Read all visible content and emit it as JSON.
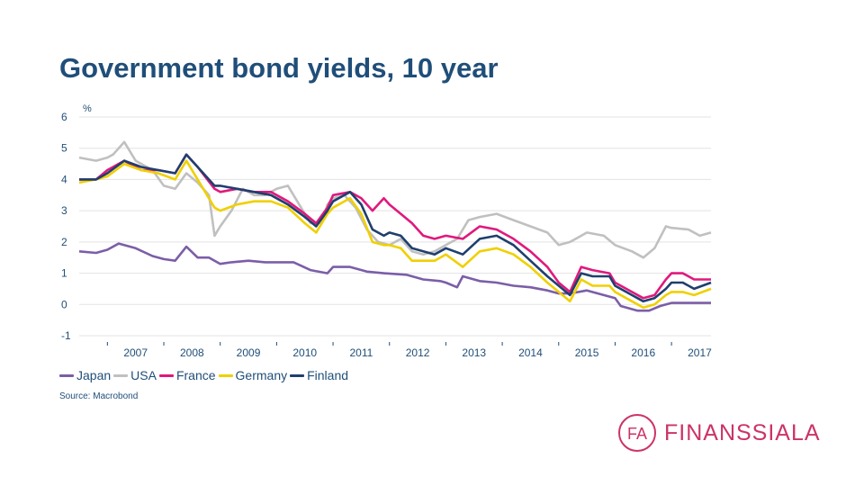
{
  "slide": {
    "title": "Government bond yields, 10 year",
    "source": "Source: Macrobond",
    "logo_text": "FINANSSIALA",
    "logo_mark": "FA"
  },
  "chart_data": {
    "type": "line",
    "title": "Government bond yields, 10 year",
    "unit_label": "%",
    "xlabel": "",
    "ylabel": "%",
    "ylim": [
      -1,
      6
    ],
    "xlim": [
      2006.5,
      2017.7
    ],
    "yticks": [
      6,
      5,
      4,
      3,
      2,
      1,
      0,
      -1
    ],
    "xticks": [
      "2007",
      "2008",
      "2009",
      "2010",
      "2011",
      "2012",
      "2013",
      "2014",
      "2015",
      "2016",
      "2017"
    ],
    "grid": "horizontal",
    "legend_position": "bottom",
    "series": [
      {
        "name": "Japan",
        "color": "#7b5ea7",
        "points": [
          [
            2006.5,
            1.7
          ],
          [
            2006.8,
            1.65
          ],
          [
            2007.0,
            1.75
          ],
          [
            2007.2,
            1.95
          ],
          [
            2007.5,
            1.8
          ],
          [
            2007.8,
            1.55
          ],
          [
            2008.0,
            1.45
          ],
          [
            2008.2,
            1.4
          ],
          [
            2008.4,
            1.85
          ],
          [
            2008.6,
            1.5
          ],
          [
            2008.8,
            1.5
          ],
          [
            2009.0,
            1.3
          ],
          [
            2009.2,
            1.35
          ],
          [
            2009.5,
            1.4
          ],
          [
            2009.8,
            1.35
          ],
          [
            2010.0,
            1.35
          ],
          [
            2010.3,
            1.35
          ],
          [
            2010.6,
            1.1
          ],
          [
            2010.9,
            1.0
          ],
          [
            2011.0,
            1.2
          ],
          [
            2011.3,
            1.2
          ],
          [
            2011.6,
            1.05
          ],
          [
            2011.9,
            1.0
          ],
          [
            2012.3,
            0.95
          ],
          [
            2012.6,
            0.8
          ],
          [
            2012.9,
            0.75
          ],
          [
            2013.0,
            0.7
          ],
          [
            2013.2,
            0.55
          ],
          [
            2013.3,
            0.9
          ],
          [
            2013.6,
            0.75
          ],
          [
            2013.9,
            0.7
          ],
          [
            2014.2,
            0.6
          ],
          [
            2014.5,
            0.55
          ],
          [
            2014.8,
            0.45
          ],
          [
            2015.0,
            0.35
          ],
          [
            2015.2,
            0.35
          ],
          [
            2015.5,
            0.45
          ],
          [
            2015.8,
            0.3
          ],
          [
            2016.0,
            0.2
          ],
          [
            2016.1,
            -0.05
          ],
          [
            2016.4,
            -0.2
          ],
          [
            2016.6,
            -0.2
          ],
          [
            2016.8,
            -0.05
          ],
          [
            2017.0,
            0.05
          ],
          [
            2017.2,
            0.05
          ],
          [
            2017.5,
            0.05
          ],
          [
            2017.7,
            0.05
          ]
        ]
      },
      {
        "name": "USA",
        "color": "#c0c0c0",
        "points": [
          [
            2006.5,
            4.7
          ],
          [
            2006.8,
            4.6
          ],
          [
            2007.0,
            4.7
          ],
          [
            2007.1,
            4.8
          ],
          [
            2007.3,
            5.2
          ],
          [
            2007.5,
            4.6
          ],
          [
            2007.8,
            4.3
          ],
          [
            2008.0,
            3.8
          ],
          [
            2008.2,
            3.7
          ],
          [
            2008.4,
            4.2
          ],
          [
            2008.6,
            3.9
          ],
          [
            2008.8,
            3.5
          ],
          [
            2008.9,
            2.2
          ],
          [
            2009.0,
            2.5
          ],
          [
            2009.2,
            3.0
          ],
          [
            2009.4,
            3.7
          ],
          [
            2009.6,
            3.5
          ],
          [
            2009.8,
            3.5
          ],
          [
            2010.0,
            3.7
          ],
          [
            2010.2,
            3.8
          ],
          [
            2010.4,
            3.2
          ],
          [
            2010.6,
            2.6
          ],
          [
            2010.8,
            2.6
          ],
          [
            2010.9,
            3.2
          ],
          [
            2011.0,
            3.4
          ],
          [
            2011.2,
            3.5
          ],
          [
            2011.4,
            3.1
          ],
          [
            2011.6,
            2.4
          ],
          [
            2011.8,
            2.0
          ],
          [
            2012.0,
            1.9
          ],
          [
            2012.2,
            2.1
          ],
          [
            2012.4,
            1.7
          ],
          [
            2012.6,
            1.6
          ],
          [
            2012.8,
            1.7
          ],
          [
            2013.0,
            1.9
          ],
          [
            2013.2,
            2.1
          ],
          [
            2013.4,
            2.7
          ],
          [
            2013.6,
            2.8
          ],
          [
            2013.9,
            2.9
          ],
          [
            2014.2,
            2.7
          ],
          [
            2014.5,
            2.5
          ],
          [
            2014.8,
            2.3
          ],
          [
            2015.0,
            1.9
          ],
          [
            2015.2,
            2.0
          ],
          [
            2015.5,
            2.3
          ],
          [
            2015.8,
            2.2
          ],
          [
            2016.0,
            1.9
          ],
          [
            2016.3,
            1.7
          ],
          [
            2016.5,
            1.5
          ],
          [
            2016.7,
            1.8
          ],
          [
            2016.9,
            2.5
          ],
          [
            2017.0,
            2.45
          ],
          [
            2017.3,
            2.4
          ],
          [
            2017.5,
            2.2
          ],
          [
            2017.7,
            2.3
          ]
        ]
      },
      {
        "name": "France",
        "color": "#e0197d",
        "points": [
          [
            2006.5,
            4.0
          ],
          [
            2006.8,
            4.0
          ],
          [
            2007.0,
            4.3
          ],
          [
            2007.3,
            4.6
          ],
          [
            2007.6,
            4.3
          ],
          [
            2007.9,
            4.3
          ],
          [
            2008.2,
            4.2
          ],
          [
            2008.4,
            4.8
          ],
          [
            2008.6,
            4.4
          ],
          [
            2008.9,
            3.7
          ],
          [
            2009.0,
            3.6
          ],
          [
            2009.3,
            3.7
          ],
          [
            2009.6,
            3.6
          ],
          [
            2009.9,
            3.6
          ],
          [
            2010.2,
            3.3
          ],
          [
            2010.5,
            2.9
          ],
          [
            2010.7,
            2.6
          ],
          [
            2010.9,
            3.1
          ],
          [
            2011.0,
            3.5
          ],
          [
            2011.3,
            3.6
          ],
          [
            2011.5,
            3.4
          ],
          [
            2011.7,
            3.0
          ],
          [
            2011.9,
            3.4
          ],
          [
            2012.0,
            3.2
          ],
          [
            2012.2,
            2.9
          ],
          [
            2012.4,
            2.6
          ],
          [
            2012.6,
            2.2
          ],
          [
            2012.8,
            2.1
          ],
          [
            2013.0,
            2.2
          ],
          [
            2013.3,
            2.1
          ],
          [
            2013.6,
            2.5
          ],
          [
            2013.9,
            2.4
          ],
          [
            2014.2,
            2.1
          ],
          [
            2014.5,
            1.7
          ],
          [
            2014.8,
            1.2
          ],
          [
            2015.0,
            0.7
          ],
          [
            2015.2,
            0.4
          ],
          [
            2015.4,
            1.2
          ],
          [
            2015.6,
            1.1
          ],
          [
            2015.9,
            1.0
          ],
          [
            2016.0,
            0.7
          ],
          [
            2016.3,
            0.4
          ],
          [
            2016.5,
            0.2
          ],
          [
            2016.7,
            0.3
          ],
          [
            2016.9,
            0.8
          ],
          [
            2017.0,
            1.0
          ],
          [
            2017.2,
            1.0
          ],
          [
            2017.4,
            0.8
          ],
          [
            2017.7,
            0.8
          ]
        ]
      },
      {
        "name": "Germany",
        "color": "#f0d000",
        "points": [
          [
            2006.5,
            3.9
          ],
          [
            2006.8,
            4.0
          ],
          [
            2007.0,
            4.1
          ],
          [
            2007.3,
            4.5
          ],
          [
            2007.6,
            4.3
          ],
          [
            2007.9,
            4.2
          ],
          [
            2008.2,
            4.0
          ],
          [
            2008.4,
            4.6
          ],
          [
            2008.6,
            4.0
          ],
          [
            2008.9,
            3.1
          ],
          [
            2009.0,
            3.0
          ],
          [
            2009.3,
            3.2
          ],
          [
            2009.6,
            3.3
          ],
          [
            2009.9,
            3.3
          ],
          [
            2010.2,
            3.1
          ],
          [
            2010.5,
            2.6
          ],
          [
            2010.7,
            2.3
          ],
          [
            2010.9,
            2.9
          ],
          [
            2011.0,
            3.1
          ],
          [
            2011.3,
            3.4
          ],
          [
            2011.5,
            2.9
          ],
          [
            2011.7,
            2.0
          ],
          [
            2011.9,
            1.9
          ],
          [
            2012.0,
            1.9
          ],
          [
            2012.2,
            1.8
          ],
          [
            2012.4,
            1.4
          ],
          [
            2012.6,
            1.4
          ],
          [
            2012.8,
            1.4
          ],
          [
            2013.0,
            1.6
          ],
          [
            2013.3,
            1.2
          ],
          [
            2013.6,
            1.7
          ],
          [
            2013.9,
            1.8
          ],
          [
            2014.2,
            1.6
          ],
          [
            2014.5,
            1.2
          ],
          [
            2014.8,
            0.7
          ],
          [
            2015.0,
            0.4
          ],
          [
            2015.2,
            0.1
          ],
          [
            2015.4,
            0.8
          ],
          [
            2015.6,
            0.6
          ],
          [
            2015.9,
            0.6
          ],
          [
            2016.0,
            0.4
          ],
          [
            2016.3,
            0.1
          ],
          [
            2016.5,
            -0.1
          ],
          [
            2016.7,
            0.0
          ],
          [
            2016.9,
            0.3
          ],
          [
            2017.0,
            0.4
          ],
          [
            2017.2,
            0.4
          ],
          [
            2017.4,
            0.3
          ],
          [
            2017.7,
            0.5
          ]
        ]
      },
      {
        "name": "Finland",
        "color": "#1f3f6e",
        "points": [
          [
            2006.5,
            4.0
          ],
          [
            2006.8,
            4.0
          ],
          [
            2007.0,
            4.2
          ],
          [
            2007.3,
            4.6
          ],
          [
            2007.6,
            4.4
          ],
          [
            2007.9,
            4.3
          ],
          [
            2008.2,
            4.2
          ],
          [
            2008.4,
            4.8
          ],
          [
            2008.6,
            4.4
          ],
          [
            2008.9,
            3.8
          ],
          [
            2009.0,
            3.8
          ],
          [
            2009.3,
            3.7
          ],
          [
            2009.6,
            3.6
          ],
          [
            2009.9,
            3.5
          ],
          [
            2010.2,
            3.2
          ],
          [
            2010.5,
            2.8
          ],
          [
            2010.7,
            2.5
          ],
          [
            2010.9,
            3.0
          ],
          [
            2011.0,
            3.3
          ],
          [
            2011.3,
            3.6
          ],
          [
            2011.5,
            3.2
          ],
          [
            2011.7,
            2.4
          ],
          [
            2011.9,
            2.2
          ],
          [
            2012.0,
            2.3
          ],
          [
            2012.2,
            2.2
          ],
          [
            2012.4,
            1.8
          ],
          [
            2012.6,
            1.7
          ],
          [
            2012.8,
            1.6
          ],
          [
            2013.0,
            1.8
          ],
          [
            2013.3,
            1.6
          ],
          [
            2013.6,
            2.1
          ],
          [
            2013.9,
            2.2
          ],
          [
            2014.2,
            1.9
          ],
          [
            2014.5,
            1.4
          ],
          [
            2014.8,
            0.9
          ],
          [
            2015.0,
            0.6
          ],
          [
            2015.2,
            0.3
          ],
          [
            2015.4,
            1.0
          ],
          [
            2015.6,
            0.9
          ],
          [
            2015.9,
            0.9
          ],
          [
            2016.0,
            0.6
          ],
          [
            2016.3,
            0.3
          ],
          [
            2016.5,
            0.1
          ],
          [
            2016.7,
            0.2
          ],
          [
            2016.9,
            0.5
          ],
          [
            2017.0,
            0.7
          ],
          [
            2017.2,
            0.7
          ],
          [
            2017.4,
            0.5
          ],
          [
            2017.7,
            0.7
          ]
        ]
      }
    ]
  }
}
